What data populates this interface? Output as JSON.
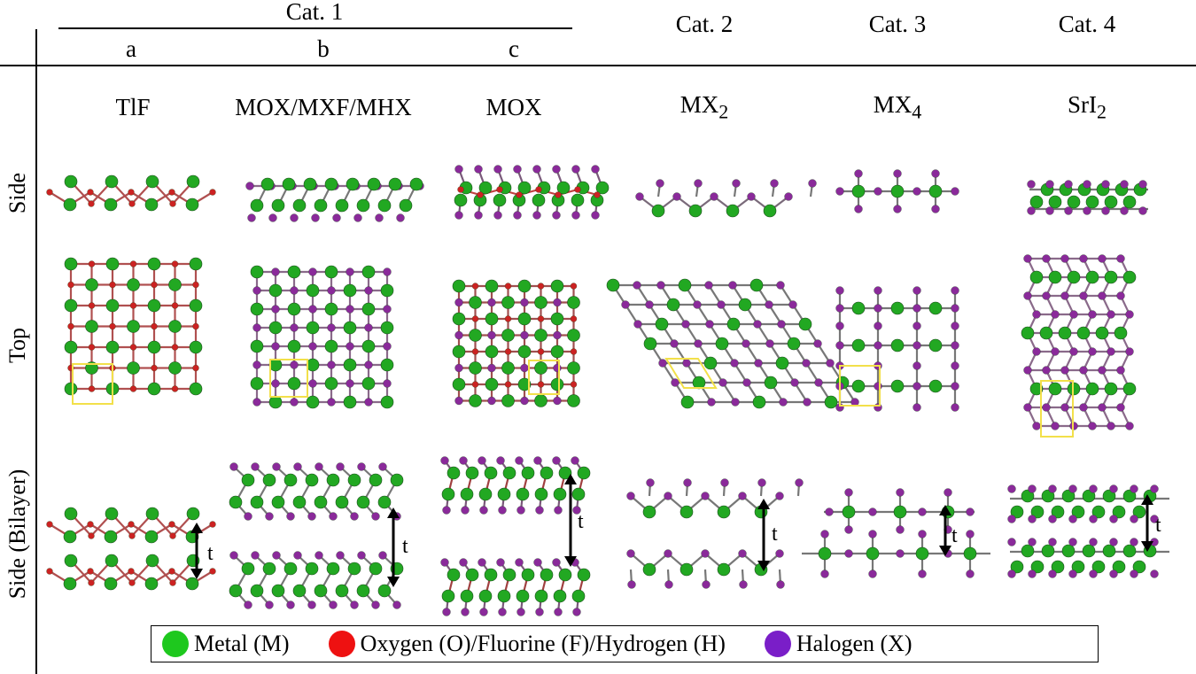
{
  "groups": {
    "cat1": "Cat. 1",
    "cat2": "Cat. 2",
    "cat3": "Cat. 3",
    "cat4": "Cat. 4"
  },
  "subcolumns": {
    "a": "a",
    "b": "b",
    "c": "c"
  },
  "formulas": {
    "a": "TlF",
    "b": "MOX/MXF/MHX",
    "c": "MOX",
    "cat2_base": "MX",
    "cat2_sub": "2",
    "cat3_base": "MX",
    "cat3_sub": "4",
    "cat4_base": "SrI",
    "cat4_sub": "2"
  },
  "rows": {
    "side": "Side",
    "top": "Top",
    "bilayer": "Side (Bilayer)"
  },
  "thickness_label": "t",
  "legend": [
    {
      "label": "Metal (M)",
      "color": "#1ec81e"
    },
    {
      "label": "Oxygen (O)/Fluorine (F)/Hydrogen (H)",
      "color": "#ee1111"
    },
    {
      "label": "Halogen (X)",
      "color": "#7a1ec8"
    }
  ],
  "colors": {
    "metal": "#22a822",
    "oxygen": "#cc2222",
    "halogen": "#8a2a9a",
    "unit_cell": "#f2e04a"
  }
}
